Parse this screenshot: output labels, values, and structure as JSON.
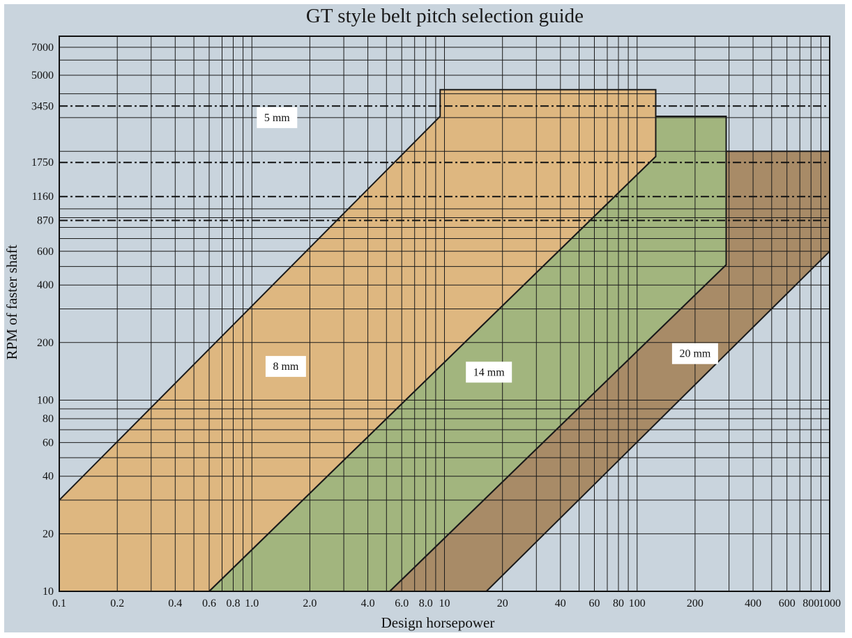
{
  "chart_data": {
    "type": "area",
    "title": "GT style belt pitch selection guide",
    "xlabel": "Design horsepower",
    "ylabel": "RPM of faster shaft",
    "x_scale": "log",
    "y_scale": "log",
    "xlim": [
      0.1,
      1000
    ],
    "ylim": [
      10,
      8000
    ],
    "grid": true,
    "x_tick_labels": [
      {
        "value": 0.1,
        "label": "0.1"
      },
      {
        "value": 0.2,
        "label": "0.2"
      },
      {
        "value": 0.4,
        "label": "0.4"
      },
      {
        "value": 0.6,
        "label": "0.6"
      },
      {
        "value": 0.8,
        "label": "0.8"
      },
      {
        "value": 1,
        "label": "1.0"
      },
      {
        "value": 2,
        "label": "2.0"
      },
      {
        "value": 4,
        "label": "4.0"
      },
      {
        "value": 6,
        "label": "6.0"
      },
      {
        "value": 8,
        "label": "8.0"
      },
      {
        "value": 10,
        "label": "10"
      },
      {
        "value": 20,
        "label": "20"
      },
      {
        "value": 40,
        "label": "40"
      },
      {
        "value": 60,
        "label": "60"
      },
      {
        "value": 80,
        "label": "80"
      },
      {
        "value": 100,
        "label": "100"
      },
      {
        "value": 200,
        "label": "200"
      },
      {
        "value": 400,
        "label": "400"
      },
      {
        "value": 600,
        "label": "600"
      },
      {
        "value": 800,
        "label": "800"
      },
      {
        "value": 1000,
        "label": "1000"
      }
    ],
    "y_tick_labels": [
      {
        "value": 10,
        "label": "10"
      },
      {
        "value": 20,
        "label": "20"
      },
      {
        "value": 40,
        "label": "40"
      },
      {
        "value": 60,
        "label": "60"
      },
      {
        "value": 80,
        "label": "80"
      },
      {
        "value": 100,
        "label": "100"
      },
      {
        "value": 200,
        "label": "200"
      },
      {
        "value": 400,
        "label": "400"
      },
      {
        "value": 600,
        "label": "600"
      },
      {
        "value": 870,
        "label": "870"
      },
      {
        "value": 1160,
        "label": "1160"
      },
      {
        "value": 1750,
        "label": "1750"
      },
      {
        "value": 3450,
        "label": "3450"
      },
      {
        "value": 5000,
        "label": "5000"
      },
      {
        "value": 7000,
        "label": "7000"
      }
    ],
    "x_gridlines": [
      0.1,
      0.2,
      0.3,
      0.4,
      0.5,
      0.6,
      0.7,
      0.8,
      0.9,
      1,
      2,
      3,
      4,
      5,
      6,
      7,
      8,
      9,
      10,
      20,
      30,
      40,
      50,
      60,
      70,
      80,
      90,
      100,
      200,
      300,
      400,
      500,
      600,
      700,
      800,
      900,
      1000
    ],
    "y_gridlines": [
      10,
      20,
      30,
      40,
      50,
      60,
      70,
      80,
      90,
      100,
      200,
      300,
      400,
      500,
      600,
      700,
      800,
      900,
      1000,
      2000,
      3000,
      4000,
      5000,
      6000,
      7000
    ],
    "reference_lines": [
      {
        "rpm": 870,
        "style": "dash-dot"
      },
      {
        "rpm": 1160,
        "style": "dash-dot"
      },
      {
        "rpm": 1750,
        "style": "dash-dot"
      },
      {
        "rpm": 3450,
        "style": "dash-dot"
      }
    ],
    "regions": [
      {
        "name": "20 mm",
        "color": "#a88b67",
        "polygon": [
          [
            5.2,
            10
          ],
          [
            16.5,
            10
          ],
          [
            1000,
            600
          ],
          [
            1000,
            2000
          ],
          [
            290,
            2000
          ],
          [
            290,
            510
          ]
        ],
        "label_point": [
          200,
          175
        ]
      },
      {
        "name": "14 mm",
        "color": "#a2b57e",
        "polygon": [
          [
            0.6,
            10
          ],
          [
            5.2,
            10
          ],
          [
            290,
            510
          ],
          [
            290,
            3050
          ],
          [
            125,
            3050
          ],
          [
            125,
            1880
          ]
        ],
        "label_point": [
          17,
          140
        ]
      },
      {
        "name": "8 mm",
        "color": "#deb780",
        "polygon": [
          [
            0.1,
            10
          ],
          [
            0.6,
            10
          ],
          [
            125,
            1880
          ],
          [
            125,
            4200
          ],
          [
            9.5,
            4200
          ],
          [
            9.5,
            3050
          ],
          [
            0.1,
            30
          ]
        ],
        "label_point": [
          1.5,
          150
        ]
      },
      {
        "name": "5 mm",
        "color": "#c9d4dd",
        "polygon": null,
        "label_point": [
          1.35,
          3000
        ]
      }
    ]
  }
}
